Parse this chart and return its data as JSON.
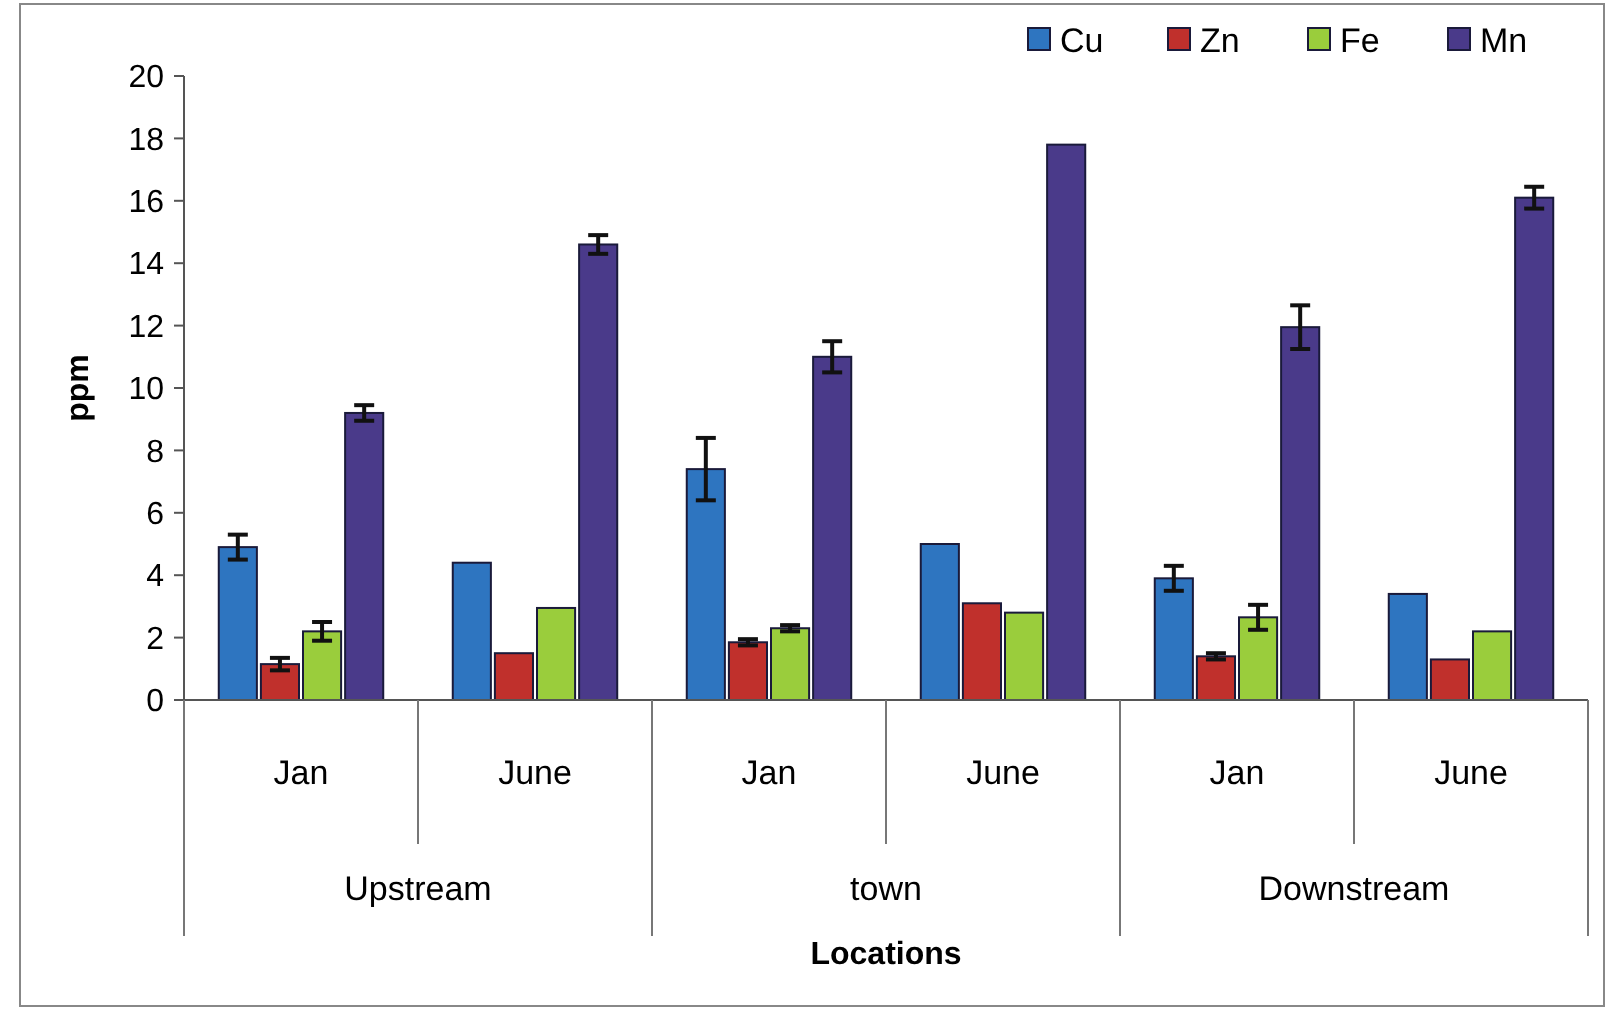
{
  "chart_data": {
    "type": "bar",
    "xlabel": "Locations",
    "ylabel": "ppm",
    "categories": [
      "Jan",
      "June",
      "Jan",
      "June",
      "Jan",
      "June"
    ],
    "annotations": [
      "Upstream",
      "town",
      "Downstream"
    ],
    "series": [
      {
        "name": "Cu",
        "color": "#2e75c0",
        "values": [
          4.9,
          4.4,
          7.4,
          5.0,
          3.9,
          3.4
        ],
        "errors": [
          0.4,
          null,
          1.0,
          null,
          0.4,
          null
        ]
      },
      {
        "name": "Zn",
        "color": "#c0302c",
        "values": [
          1.15,
          1.5,
          1.85,
          3.1,
          1.4,
          1.3
        ],
        "errors": [
          0.2,
          null,
          0.1,
          null,
          0.1,
          null
        ]
      },
      {
        "name": "Fe",
        "color": "#9acd3c",
        "values": [
          2.2,
          2.95,
          2.3,
          2.8,
          2.65,
          2.2
        ],
        "errors": [
          0.3,
          null,
          0.1,
          null,
          0.4,
          null
        ]
      },
      {
        "name": "Mn",
        "color": "#4a3a8a",
        "values": [
          9.2,
          14.6,
          11.0,
          17.8,
          11.95,
          16.1
        ],
        "errors": [
          0.25,
          0.3,
          0.5,
          null,
          0.7,
          0.35
        ]
      }
    ],
    "ylim": [
      0,
      20
    ],
    "yticks": [
      0,
      2,
      4,
      6,
      8,
      10,
      12,
      14,
      16,
      18,
      20
    ],
    "legend": "top right",
    "grid": false
  }
}
